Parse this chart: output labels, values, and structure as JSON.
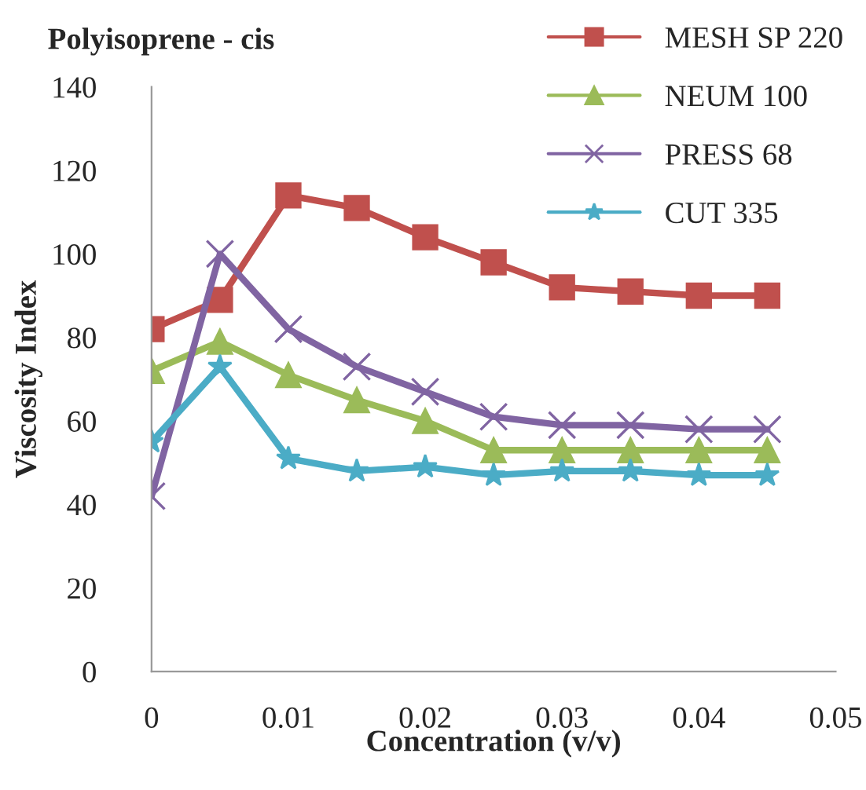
{
  "chart_data": {
    "type": "line",
    "title": "Polyisoprene - cis",
    "xlabel": "Concentration (v/v)",
    "ylabel": "Viscosity Index",
    "x": [
      0,
      0.005,
      0.01,
      0.015,
      0.02,
      0.025,
      0.03,
      0.035,
      0.04,
      0.045
    ],
    "series": [
      {
        "name": "MESH SP 220",
        "color": "#c0504d",
        "marker": "square",
        "values": [
          82,
          89,
          114,
          111,
          104,
          98,
          92,
          91,
          90,
          90
        ]
      },
      {
        "name": "NEUM 100",
        "color": "#9bbb59",
        "marker": "triangle",
        "values": [
          72,
          79,
          71,
          65,
          60,
          53,
          53,
          53,
          53,
          53
        ]
      },
      {
        "name": "PRESS 68",
        "color": "#8064a2",
        "marker": "cross",
        "values": [
          42,
          100,
          82,
          73,
          67,
          61,
          59,
          59,
          58,
          58
        ]
      },
      {
        "name": "CUT 335",
        "color": "#4bacc6",
        "marker": "star",
        "values": [
          55,
          73,
          51,
          48,
          49,
          47,
          48,
          48,
          47,
          47
        ]
      }
    ],
    "xlim": [
      0,
      0.05
    ],
    "xticks": [
      0,
      0.01,
      0.02,
      0.03,
      0.04,
      0.05
    ],
    "ylim": [
      0,
      140
    ],
    "yticks": [
      0,
      20,
      40,
      60,
      80,
      100,
      120,
      140
    ],
    "grid": false,
    "legend": "top right",
    "line_style": "solid"
  }
}
